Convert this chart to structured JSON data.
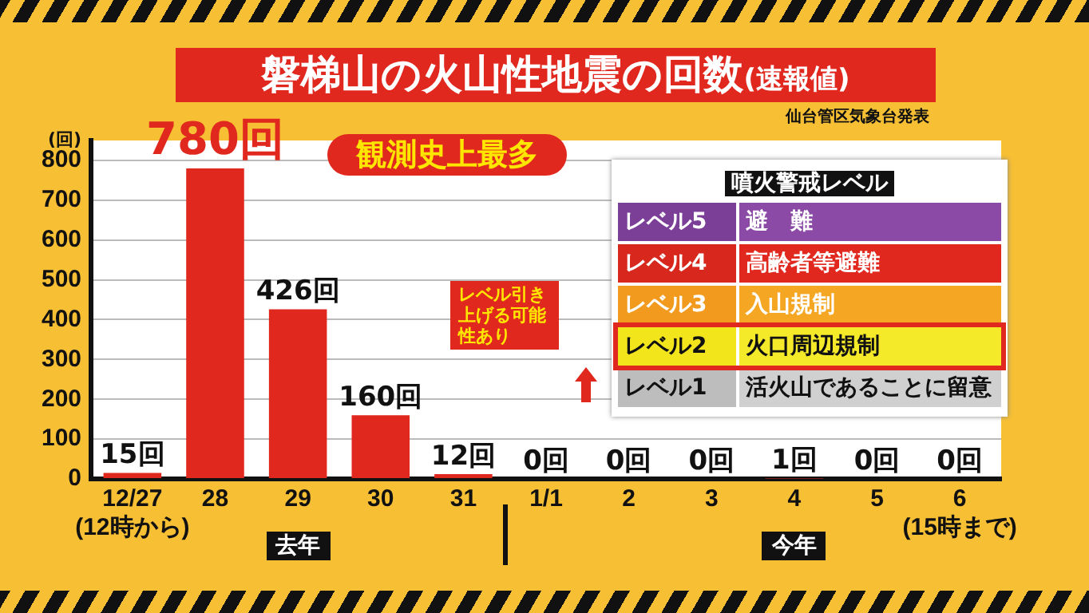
{
  "chart_data": {
    "type": "bar",
    "title": "磐梯山の火山性地震の回数",
    "subtitle": "(速報値)",
    "ylabel": "(回)",
    "categories": [
      "12/27\n(12時から)",
      "28",
      "29",
      "30",
      "31",
      "1/1",
      "2",
      "3",
      "4",
      "5",
      "6\n(15時まで)"
    ],
    "values": [
      15,
      780,
      426,
      160,
      12,
      0,
      0,
      0,
      1,
      0,
      0
    ],
    "value_labels": [
      "15回",
      "780回",
      "426回",
      "160回",
      "12回",
      "0回",
      "0回",
      "0回",
      "1回",
      "0回",
      "0回"
    ],
    "color": "#e0281e",
    "ylim": [
      0,
      850
    ],
    "yticks": [
      0,
      100,
      200,
      300,
      400,
      500,
      600,
      700,
      800
    ],
    "grid": "y",
    "annotations": [
      "仙台管区気象台発表",
      "観測史上最多",
      "レベル引き上げる可能性あり",
      "去年",
      "今年",
      "噴火警戒レベル",
      "レベル5",
      "避　難",
      "レベル4",
      "高齢者等避難",
      "レベル3",
      "入山規制",
      "レベル2",
      "火口周辺規制",
      "レベル1",
      "活火山であることに留意"
    ]
  }
}
